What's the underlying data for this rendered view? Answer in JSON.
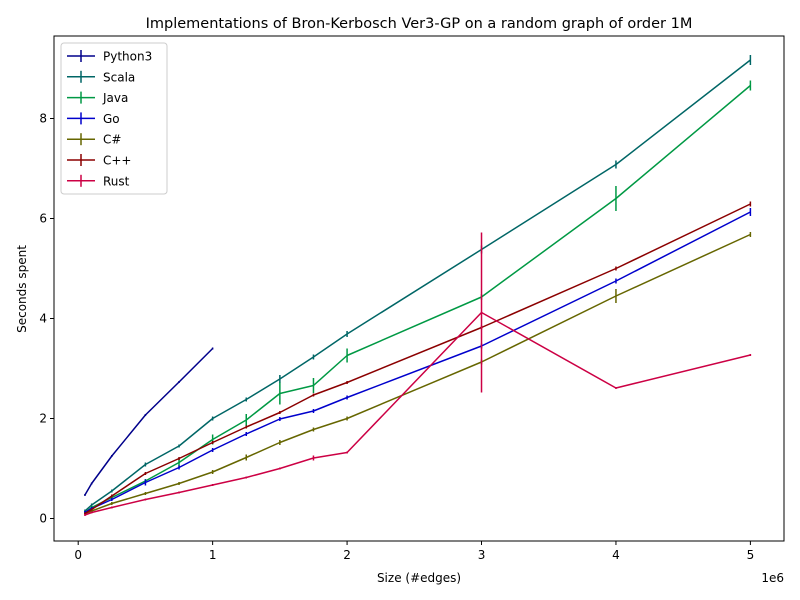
{
  "chart_data": {
    "type": "line",
    "title": "Implementations of Bron-Kerbosch Ver3-GP on a random graph of order 1M",
    "xlabel": "Size (#edges)",
    "ylabel": "Seconds spent",
    "x_offset_label": "1e6",
    "xlim": [
      -0.18,
      5.25
    ],
    "ylim": [
      -0.45,
      9.65
    ],
    "x_ticks": [
      0,
      1,
      2,
      3,
      4,
      5
    ],
    "x_tick_labels": [
      "0",
      "1",
      "2",
      "3",
      "4",
      "5"
    ],
    "y_ticks": [
      0,
      2,
      4,
      6,
      8
    ],
    "y_tick_labels": [
      "0",
      "2",
      "4",
      "6",
      "8"
    ],
    "grid": false,
    "legend_position": "top-left",
    "series": [
      {
        "name": "Python3",
        "color": "#00008b",
        "x": [
          0.05,
          0.1,
          0.25,
          0.5,
          0.75,
          1.0
        ],
        "y": [
          0.47,
          0.7,
          1.25,
          2.07,
          2.73,
          3.4
        ],
        "err": [
          0.02,
          0.02,
          0.02,
          0.02,
          0.02,
          0.02
        ]
      },
      {
        "name": "Scala",
        "color": "#006666",
        "x": [
          0.05,
          0.1,
          0.25,
          0.5,
          0.75,
          1.0,
          1.25,
          1.5,
          1.75,
          2.0,
          3.0,
          4.0,
          5.0
        ],
        "y": [
          0.15,
          0.27,
          0.55,
          1.08,
          1.45,
          2.0,
          2.38,
          2.79,
          3.23,
          3.69,
          5.38,
          7.08,
          9.17
        ],
        "err": [
          0.03,
          0.03,
          0.03,
          0.04,
          0.03,
          0.04,
          0.04,
          0.08,
          0.05,
          0.06,
          0.08,
          0.08,
          0.1
        ]
      },
      {
        "name": "Java",
        "color": "#009944",
        "x": [
          0.05,
          0.1,
          0.25,
          0.5,
          0.75,
          1.0,
          1.25,
          1.5,
          1.75,
          2.0,
          3.0,
          4.0,
          5.0
        ],
        "y": [
          0.12,
          0.22,
          0.42,
          0.75,
          1.12,
          1.58,
          1.97,
          2.5,
          2.66,
          3.26,
          4.43,
          6.4,
          8.66
        ],
        "err": [
          0.03,
          0.03,
          0.03,
          0.04,
          0.08,
          0.1,
          0.12,
          0.22,
          0.15,
          0.14,
          0.06,
          0.25,
          0.1
        ]
      },
      {
        "name": "Go",
        "color": "#0000cc",
        "x": [
          0.05,
          0.1,
          0.25,
          0.5,
          0.75,
          1.0,
          1.25,
          1.5,
          1.75,
          2.0,
          3.0,
          4.0,
          5.0
        ],
        "y": [
          0.12,
          0.2,
          0.38,
          0.72,
          1.02,
          1.37,
          1.69,
          1.99,
          2.15,
          2.42,
          3.45,
          4.75,
          6.13
        ],
        "err": [
          0.03,
          0.03,
          0.03,
          0.06,
          0.04,
          0.04,
          0.04,
          0.04,
          0.04,
          0.04,
          0.05,
          0.05,
          0.08
        ]
      },
      {
        "name": "C#",
        "color": "#666600",
        "x": [
          0.05,
          0.1,
          0.25,
          0.5,
          0.75,
          1.0,
          1.25,
          1.5,
          1.75,
          2.0,
          3.0,
          4.0,
          5.0
        ],
        "y": [
          0.1,
          0.15,
          0.3,
          0.5,
          0.7,
          0.93,
          1.22,
          1.52,
          1.78,
          2.0,
          3.13,
          4.45,
          5.68
        ],
        "err": [
          0.02,
          0.02,
          0.03,
          0.03,
          0.03,
          0.04,
          0.06,
          0.05,
          0.04,
          0.04,
          0.05,
          0.14,
          0.05
        ]
      },
      {
        "name": "C++",
        "color": "#8b0000",
        "x": [
          0.05,
          0.1,
          0.25,
          0.5,
          0.75,
          1.0,
          1.25,
          1.5,
          1.75,
          2.0,
          3.0,
          4.0,
          5.0
        ],
        "y": [
          0.1,
          0.18,
          0.45,
          0.9,
          1.2,
          1.52,
          1.83,
          2.12,
          2.47,
          2.72,
          3.82,
          5.0,
          6.29
        ],
        "err": [
          0.02,
          0.02,
          0.03,
          0.03,
          0.03,
          0.03,
          0.03,
          0.03,
          0.03,
          0.03,
          0.04,
          0.04,
          0.05
        ]
      },
      {
        "name": "Rust",
        "color": "#cc0044",
        "x": [
          0.05,
          0.1,
          0.25,
          0.5,
          0.75,
          1.0,
          1.25,
          1.5,
          1.75,
          2.0,
          3.0,
          4.0,
          5.0
        ],
        "y": [
          0.07,
          0.12,
          0.22,
          0.38,
          0.52,
          0.67,
          0.82,
          1.0,
          1.21,
          1.32,
          4.12,
          2.61,
          3.27
        ],
        "err": [
          0.02,
          0.02,
          0.02,
          0.02,
          0.02,
          0.02,
          0.02,
          0.02,
          0.05,
          0.02,
          1.6,
          0.02,
          0.02
        ]
      }
    ]
  }
}
